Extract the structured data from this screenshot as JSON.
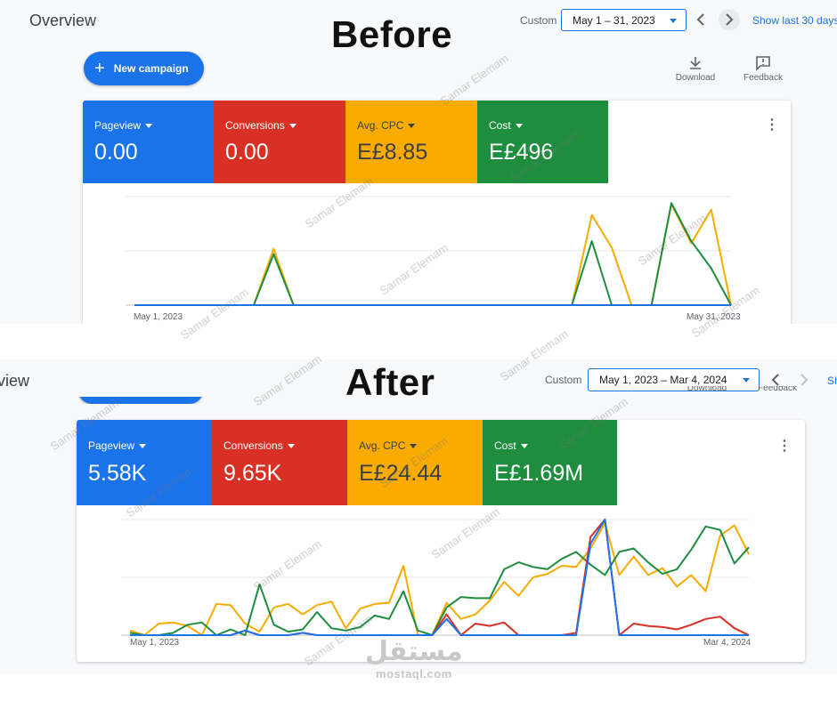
{
  "before": {
    "page_title": "Overview",
    "big_label": "Before",
    "custom_label": "Custom",
    "date_range": "May 1 – 31, 2023",
    "show_last": "Show last 30 days",
    "new_campaign_label": "New campaign",
    "download_label": "Download",
    "feedback_label": "Feedback",
    "metrics": [
      {
        "label": "Pageview",
        "value": "0.00",
        "color": "#1a73e8"
      },
      {
        "label": "Conversions",
        "value": "0.00",
        "color": "#d93025"
      },
      {
        "label": "Avg. CPC",
        "value": "E£8.85",
        "color": "#f9ab00"
      },
      {
        "label": "Cost",
        "value": "E£496",
        "color": "#1e8e3e"
      }
    ],
    "x_start": "May 1, 2023",
    "x_end": "May 31, 2023"
  },
  "after": {
    "page_title": "view",
    "big_label": "After",
    "custom_label": "Custom",
    "date_range": "May 1, 2023 – Mar 4, 2024",
    "show_last": "Sh",
    "download_label": "Download",
    "feedback_label": "Feedback",
    "metrics": [
      {
        "label": "Pageview",
        "value": "5.58K",
        "color": "#1a73e8"
      },
      {
        "label": "Conversions",
        "value": "9.65K",
        "color": "#d93025"
      },
      {
        "label": "Avg. CPC",
        "value": "E£24.44",
        "color": "#f9ab00"
      },
      {
        "label": "Cost",
        "value": "E£1.69M",
        "color": "#1e8e3e"
      }
    ],
    "x_start": "May 1, 2023",
    "x_end": "Mar 4, 2024"
  },
  "watermark_text": "Samar Elemam",
  "logo": {
    "arabic": "مستقل",
    "latin": "mostaql.com"
  },
  "chart_data": [
    {
      "type": "line",
      "title": "",
      "x_start": "May 1, 2023",
      "x_end": "May 31, 2023",
      "ylim": [
        0,
        100
      ],
      "grid": true,
      "series": [
        {
          "name": "Avg. CPC",
          "color": "#f9ab00",
          "values": [
            0,
            0,
            0,
            0,
            0,
            0,
            0,
            52,
            0,
            0,
            0,
            0,
            0,
            0,
            0,
            0,
            0,
            0,
            0,
            0,
            0,
            0,
            0,
            83,
            53,
            0,
            0,
            93,
            57,
            88,
            0
          ]
        },
        {
          "name": "Cost",
          "color": "#1e8e3e",
          "values": [
            0,
            0,
            0,
            0,
            0,
            0,
            0,
            47,
            0,
            0,
            0,
            0,
            0,
            0,
            0,
            0,
            0,
            0,
            0,
            0,
            0,
            0,
            0,
            59,
            0,
            0,
            0,
            94,
            59,
            34,
            0
          ]
        },
        {
          "name": "Conversions",
          "color": "#d93025",
          "values": [
            0,
            0,
            0,
            0,
            0,
            0,
            0,
            0,
            0,
            0,
            0,
            0,
            0,
            0,
            0,
            0,
            0,
            0,
            0,
            0,
            0,
            0,
            0,
            0,
            0,
            0,
            0,
            0,
            0,
            0,
            0
          ]
        },
        {
          "name": "Pageview",
          "color": "#1a73e8",
          "values": [
            0,
            0,
            0,
            0,
            0,
            0,
            0,
            0,
            0,
            0,
            0,
            0,
            0,
            0,
            0,
            0,
            0,
            0,
            0,
            0,
            0,
            0,
            0,
            0,
            0,
            0,
            0,
            0,
            0,
            0,
            0
          ]
        }
      ]
    },
    {
      "type": "line",
      "title": "",
      "x_start": "May 1, 2023",
      "x_end": "Mar 4, 2024",
      "ylim": [
        0,
        100
      ],
      "grid": true,
      "series": [
        {
          "name": "Avg. CPC",
          "color": "#f9ab00",
          "values": [
            4,
            0,
            10,
            11,
            8,
            0,
            27,
            26,
            10,
            3,
            24,
            27,
            18,
            26,
            29,
            6,
            23,
            27,
            28,
            60,
            0,
            0,
            28,
            14,
            18,
            30,
            46,
            34,
            50,
            53,
            60,
            59,
            75,
            97,
            52,
            68,
            52,
            58,
            42,
            52,
            38,
            86,
            95,
            70
          ]
        },
        {
          "name": "Cost",
          "color": "#1e8e3e",
          "values": [
            2,
            0,
            0,
            2,
            9,
            11,
            0,
            5,
            0,
            44,
            9,
            3,
            5,
            20,
            6,
            4,
            7,
            17,
            14,
            38,
            4,
            0,
            24,
            33,
            32,
            32,
            57,
            63,
            59,
            57,
            66,
            72,
            61,
            52,
            72,
            75,
            63,
            53,
            57,
            74,
            94,
            91,
            62,
            76
          ]
        },
        {
          "name": "Conversions",
          "color": "#d93025",
          "values": [
            0,
            0,
            0,
            0,
            0,
            0,
            0,
            0,
            4,
            0,
            0,
            0,
            2,
            0,
            0,
            0,
            0,
            0,
            0,
            0,
            0,
            0,
            18,
            0,
            10,
            8,
            11,
            0,
            0,
            0,
            0,
            2,
            85,
            100,
            0,
            10,
            8,
            7,
            5,
            9,
            14,
            16,
            6,
            0
          ]
        },
        {
          "name": "Pageview",
          "color": "#1a73e8",
          "values": [
            0,
            0,
            0,
            0,
            0,
            0,
            0,
            0,
            4,
            0,
            0,
            0,
            2,
            0,
            0,
            0,
            0,
            0,
            0,
            0,
            0,
            0,
            14,
            0,
            0,
            0,
            0,
            0,
            0,
            0,
            0,
            0,
            79,
            100,
            0,
            0,
            0,
            0,
            0,
            0,
            0,
            0,
            0,
            0
          ]
        }
      ]
    }
  ]
}
